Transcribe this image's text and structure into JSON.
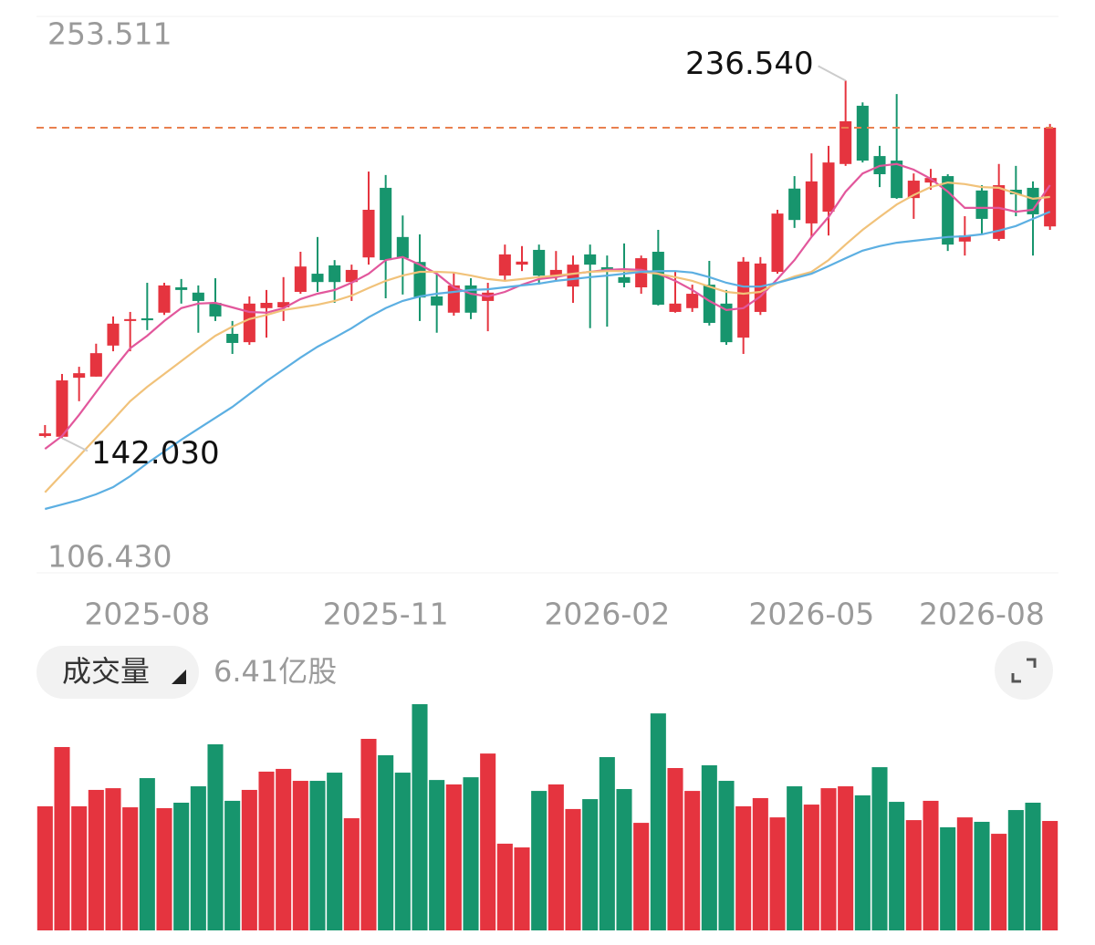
{
  "chart_data": {
    "type": "candlestick",
    "categories": [
      null,
      null,
      null,
      null,
      null,
      null,
      "2025-08",
      null,
      null,
      null,
      null,
      null,
      null,
      null,
      null,
      null,
      null,
      null,
      null,
      null,
      "2025-11",
      null,
      null,
      null,
      null,
      null,
      null,
      null,
      null,
      null,
      null,
      null,
      null,
      "2026-02",
      null,
      null,
      null,
      null,
      null,
      null,
      null,
      null,
      null,
      null,
      null,
      "2026-05",
      null,
      null,
      null,
      null,
      null,
      null,
      null,
      null,
      null,
      "2026-08",
      null,
      null,
      null,
      null
    ],
    "open": [
      142.6,
      142.4,
      158.0,
      158.3,
      166.5,
      173.0,
      173.7,
      175.2,
      181.9,
      180.5,
      177.8,
      169.6,
      167.4,
      176.4,
      176.6,
      180.7,
      185.5,
      187.7,
      183.3,
      189.8,
      208.2,
      195.2,
      188.6,
      179.5,
      175.2,
      182.4,
      178.3,
      185.0,
      187.9,
      191.8,
      184.8,
      182.1,
      190.6,
      187.2,
      184.6,
      181.9,
      191.3,
      175.4,
      176.4,
      182.6,
      177.6,
      168.6,
      175.4,
      186.0,
      208.0,
      198.8,
      201.9,
      214.5,
      229.9,
      216.6,
      215.4,
      205.5,
      209.6,
      211.3,
      194.0,
      207.5,
      194.7,
      207.7,
      208.2,
      198.0
    ],
    "high": [
      145.5,
      159.0,
      160.9,
      167.0,
      174.2,
      175.4,
      183.1,
      183.1,
      184.1,
      182.4,
      184.3,
      173.0,
      179.5,
      181.2,
      184.6,
      191.3,
      195.2,
      189.1,
      187.9,
      212.5,
      211.6,
      200.9,
      195.9,
      185.5,
      185.7,
      184.3,
      183.1,
      193.2,
      192.8,
      193.2,
      191.5,
      190.3,
      193.2,
      190.3,
      193.5,
      190.3,
      197.1,
      186.2,
      182.6,
      188.9,
      181.2,
      189.9,
      189.9,
      202.4,
      211.3,
      217.3,
      219.3,
      236.54,
      230.8,
      219.3,
      233.0,
      212.0,
      213.2,
      211.8,
      200.7,
      208.9,
      214.5,
      214.0,
      209.9,
      225.1
    ],
    "low": [
      142.2,
      142.03,
      151.8,
      158.3,
      165.0,
      165.0,
      170.6,
      174.6,
      177.6,
      169.9,
      173.0,
      164.3,
      166.7,
      168.6,
      173.0,
      180.2,
      180.7,
      177.8,
      178.3,
      187.9,
      179.0,
      180.0,
      173.0,
      169.9,
      174.4,
      173.5,
      170.3,
      183.8,
      186.2,
      182.6,
      183.6,
      177.8,
      171.1,
      171.5,
      181.9,
      180.2,
      177.1,
      175.2,
      175.4,
      171.8,
      166.7,
      164.3,
      174.6,
      185.5,
      197.6,
      195.2,
      195.6,
      214.0,
      214.9,
      208.4,
      205.3,
      200.0,
      207.7,
      191.5,
      190.3,
      195.9,
      194.2,
      200.7,
      190.3,
      197.1
    ],
    "close": [
      143.3,
      157.3,
      159.2,
      164.5,
      172.3,
      173.5,
      173.2,
      182.4,
      181.2,
      178.3,
      174.2,
      167.2,
      177.6,
      177.8,
      178.0,
      187.4,
      183.3,
      183.3,
      186.5,
      202.4,
      189.1,
      189.6,
      179.2,
      177.1,
      182.4,
      175.2,
      180.5,
      190.6,
      188.7,
      185.0,
      186.5,
      187.9,
      187.9,
      186.2,
      183.1,
      189.6,
      177.3,
      177.6,
      180.2,
      172.5,
      167.4,
      188.7,
      188.2,
      201.4,
      199.7,
      209.9,
      214.9,
      225.8,
      215.4,
      211.8,
      205.5,
      210.1,
      210.8,
      193.2,
      195.6,
      200.0,
      208.9,
      206.5,
      201.2,
      224.1
    ],
    "up_color": "#e5343f",
    "down_color": "#17956d",
    "last_line_color": "#e9804f",
    "high_label": "236.540",
    "low_label": "142.030",
    "ylim": [
      106.43,
      253.511
    ],
    "yticks": [
      253.511,
      {
        "value": 106.43,
        "label": "106.430"
      }
    ],
    "moving_averages": [
      {
        "color": "#e2579c",
        "values": [
          139.2,
          142.6,
          148.2,
          154.2,
          160.2,
          165.8,
          169.1,
          173.0,
          176.4,
          177.6,
          177.8,
          176.6,
          175.4,
          175.2,
          176.4,
          178.8,
          180.2,
          181.2,
          183.1,
          185.5,
          189.1,
          189.9,
          187.9,
          185.5,
          181.9,
          180.2,
          179.5,
          180.7,
          182.6,
          184.1,
          184.6,
          185.5,
          186.0,
          186.5,
          186.7,
          186.5,
          185.5,
          183.6,
          181.2,
          178.3,
          175.9,
          176.4,
          179.5,
          184.1,
          189.1,
          195.2,
          200.5,
          207.2,
          212.0,
          214.0,
          214.5,
          213.0,
          210.6,
          207.2,
          202.9,
          202.9,
          202.9,
          201.9,
          202.4,
          208.9
        ]
      },
      {
        "color": "#f1c27a",
        "values": [
          127.7,
          132.5,
          137.3,
          142.1,
          146.9,
          151.8,
          155.6,
          159.0,
          162.4,
          165.8,
          169.1,
          171.5,
          173.5,
          174.6,
          175.9,
          176.6,
          177.3,
          178.3,
          179.7,
          181.7,
          183.6,
          185.0,
          186.0,
          186.0,
          185.8,
          185.0,
          184.1,
          183.6,
          184.1,
          184.6,
          185.0,
          185.5,
          186.0,
          186.2,
          186.2,
          186.0,
          185.5,
          184.6,
          183.6,
          182.1,
          180.7,
          180.2,
          180.7,
          183.1,
          184.8,
          186.0,
          189.1,
          193.2,
          197.1,
          200.5,
          203.8,
          206.3,
          208.4,
          209.6,
          209.2,
          208.4,
          208.2,
          206.7,
          205.3,
          205.8
        ]
      },
      {
        "color": "#5cafe2",
        "values": [
          123.3,
          124.5,
          125.7,
          127.2,
          129.1,
          132.0,
          135.4,
          138.5,
          141.6,
          144.5,
          147.4,
          150.3,
          153.7,
          157.1,
          160.2,
          163.3,
          166.2,
          168.6,
          171.1,
          174.0,
          176.4,
          178.3,
          179.5,
          180.2,
          180.7,
          181.2,
          181.4,
          181.9,
          182.4,
          182.9,
          183.6,
          184.1,
          184.6,
          185.0,
          185.5,
          186.0,
          186.2,
          186.2,
          185.8,
          184.6,
          183.1,
          182.1,
          182.1,
          183.1,
          184.3,
          185.5,
          187.5,
          189.6,
          191.6,
          192.8,
          193.7,
          194.2,
          194.7,
          195.2,
          195.4,
          195.9,
          196.9,
          198.1,
          200.0,
          201.9
        ]
      }
    ],
    "volume": {
      "title": "成交量",
      "label": "6.41亿股",
      "values": [
        7.27,
        10.74,
        7.27,
        8.23,
        8.33,
        7.21,
        8.92,
        7.16,
        7.48,
        8.44,
        10.9,
        7.59,
        8.23,
        9.3,
        9.46,
        8.76,
        8.76,
        9.24,
        6.57,
        11.22,
        10.26,
        9.24,
        13.25,
        8.81,
        8.55,
        8.97,
        10.36,
        5.08,
        4.86,
        8.17,
        8.55,
        7.11,
        7.69,
        10.15,
        8.28,
        6.3,
        12.71,
        9.51,
        8.17,
        9.67,
        8.76,
        7.27,
        7.75,
        6.62,
        8.44,
        7.37,
        8.33,
        8.44,
        7.91,
        9.56,
        7.53,
        6.46,
        7.59,
        6.04,
        6.62,
        6.36,
        5.66,
        7.05,
        7.48,
        6.41
      ]
    }
  }
}
